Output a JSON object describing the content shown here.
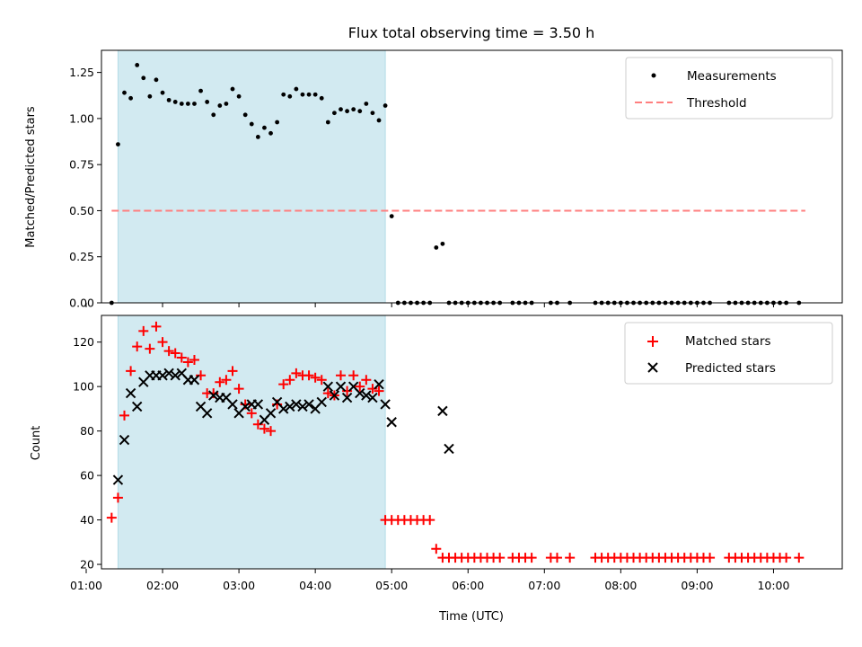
{
  "chart_data": [
    {
      "type": "scatter",
      "title": "Flux total observing time = 3.50 h",
      "ylabel": "Matched/Predicted stars",
      "xlabel": "",
      "xlim": [
        "01:12",
        "10:54"
      ],
      "ylim": [
        0,
        1.37
      ],
      "yticks": [
        "0.00",
        "0.25",
        "0.50",
        "0.75",
        "1.00",
        "1.25"
      ],
      "highlight_span": [
        "01:25",
        "04:55"
      ],
      "highlight_color": "#add8e6",
      "legend": "top-right",
      "series": [
        {
          "name": "Measurements",
          "marker": "dot",
          "color": "#000000",
          "x": [
            "01:20",
            "01:25",
            "01:30",
            "01:35",
            "01:40",
            "01:45",
            "01:50",
            "01:55",
            "02:00",
            "02:05",
            "02:10",
            "02:15",
            "02:20",
            "02:25",
            "02:30",
            "02:35",
            "02:40",
            "02:45",
            "02:50",
            "02:55",
            "03:00",
            "03:05",
            "03:10",
            "03:15",
            "03:20",
            "03:25",
            "03:30",
            "03:35",
            "03:40",
            "03:45",
            "03:50",
            "03:55",
            "04:00",
            "04:05",
            "04:10",
            "04:15",
            "04:20",
            "04:25",
            "04:30",
            "04:35",
            "04:40",
            "04:45",
            "04:50",
            "04:55",
            "05:00",
            "05:05",
            "05:10",
            "05:15",
            "05:20",
            "05:25",
            "05:30",
            "05:35",
            "05:40",
            "05:45",
            "05:50",
            "05:55",
            "06:00",
            "06:05",
            "06:10",
            "06:15",
            "06:20",
            "06:25",
            "06:35",
            "06:40",
            "06:45",
            "06:50",
            "07:05",
            "07:10",
            "07:20",
            "07:40",
            "07:45",
            "07:50",
            "07:55",
            "08:00",
            "08:05",
            "08:10",
            "08:15",
            "08:20",
            "08:25",
            "08:30",
            "08:35",
            "08:40",
            "08:45",
            "08:50",
            "08:55",
            "09:00",
            "09:05",
            "09:10",
            "09:25",
            "09:30",
            "09:35",
            "09:40",
            "09:45",
            "09:50",
            "09:55",
            "10:00",
            "10:05",
            "10:10",
            "10:20"
          ],
          "y": [
            0.0,
            0.86,
            1.14,
            1.11,
            1.29,
            1.22,
            1.12,
            1.21,
            1.14,
            1.1,
            1.09,
            1.08,
            1.08,
            1.08,
            1.15,
            1.09,
            1.02,
            1.07,
            1.08,
            1.16,
            1.12,
            1.02,
            0.97,
            0.9,
            0.95,
            0.92,
            0.98,
            1.13,
            1.12,
            1.16,
            1.13,
            1.13,
            1.13,
            1.11,
            0.98,
            1.03,
            1.05,
            1.04,
            1.05,
            1.04,
            1.08,
            1.03,
            0.99,
            1.07,
            0.47,
            0.0,
            0.0,
            0.0,
            0.0,
            0.0,
            0.0,
            0.3,
            0.32,
            0.0,
            0.0,
            0.0,
            0.0,
            0.0,
            0.0,
            0.0,
            0.0,
            0.0,
            0.0,
            0.0,
            0.0,
            0.0,
            0.0,
            0.0,
            0.0,
            0.0,
            0.0,
            0.0,
            0.0,
            0.0,
            0.0,
            0.0,
            0.0,
            0.0,
            0.0,
            0.0,
            0.0,
            0.0,
            0.0,
            0.0,
            0.0,
            0.0,
            0.0,
            0.0,
            0.0,
            0.0,
            0.0,
            0.0,
            0.0,
            0.0,
            0.0,
            0.0,
            0.0,
            0.0,
            0.0
          ]
        },
        {
          "name": "Threshold",
          "marker": "dashed-line",
          "color": "#ff7f7f",
          "x": [
            "01:20",
            "10:25"
          ],
          "y": [
            0.5,
            0.5
          ]
        }
      ]
    },
    {
      "type": "scatter",
      "title": "",
      "ylabel": "Count",
      "xlabel": "Time (UTC)",
      "xlim": [
        "01:12",
        "10:54"
      ],
      "ylim": [
        18,
        132
      ],
      "yticks": [
        "20",
        "40",
        "60",
        "80",
        "100",
        "120"
      ],
      "xticks": [
        "01:00",
        "02:00",
        "03:00",
        "04:00",
        "05:00",
        "06:00",
        "07:00",
        "08:00",
        "09:00",
        "10:00"
      ],
      "highlight_span": [
        "01:25",
        "04:55"
      ],
      "highlight_color": "#add8e6",
      "legend": "top-right",
      "series": [
        {
          "name": "Matched stars",
          "marker": "plus",
          "color": "#ff0000",
          "x": [
            "01:20",
            "01:25",
            "01:30",
            "01:35",
            "01:40",
            "01:45",
            "01:50",
            "01:55",
            "02:00",
            "02:05",
            "02:10",
            "02:15",
            "02:20",
            "02:25",
            "02:30",
            "02:35",
            "02:40",
            "02:45",
            "02:50",
            "02:55",
            "03:00",
            "03:05",
            "03:10",
            "03:15",
            "03:20",
            "03:25",
            "03:30",
            "03:35",
            "03:40",
            "03:45",
            "03:50",
            "03:55",
            "04:00",
            "04:05",
            "04:10",
            "04:15",
            "04:20",
            "04:25",
            "04:30",
            "04:35",
            "04:40",
            "04:45",
            "04:50",
            "04:55",
            "05:00",
            "05:05",
            "05:10",
            "05:15",
            "05:20",
            "05:25",
            "05:30",
            "05:35",
            "05:40",
            "05:45",
            "05:50",
            "05:55",
            "06:00",
            "06:05",
            "06:10",
            "06:15",
            "06:20",
            "06:25",
            "06:35",
            "06:40",
            "06:45",
            "06:50",
            "07:05",
            "07:10",
            "07:20",
            "07:40",
            "07:45",
            "07:50",
            "07:55",
            "08:00",
            "08:05",
            "08:10",
            "08:15",
            "08:20",
            "08:25",
            "08:30",
            "08:35",
            "08:40",
            "08:45",
            "08:50",
            "08:55",
            "09:00",
            "09:05",
            "09:10",
            "09:25",
            "09:30",
            "09:35",
            "09:40",
            "09:45",
            "09:50",
            "09:55",
            "10:00",
            "10:05",
            "10:10",
            "10:20"
          ],
          "y": [
            41,
            50,
            87,
            107,
            118,
            125,
            117,
            127,
            120,
            116,
            115,
            113,
            111,
            112,
            105,
            97,
            97,
            102,
            103,
            107,
            99,
            92,
            88,
            83,
            81,
            80,
            92,
            101,
            103,
            106,
            105,
            105,
            104,
            103,
            97,
            96,
            105,
            98,
            105,
            100,
            103,
            99,
            98,
            40,
            40,
            40,
            40,
            40,
            40,
            40,
            40,
            27,
            23,
            23,
            23,
            23,
            23,
            23,
            23,
            23,
            23,
            23,
            23,
            23,
            23,
            23,
            23,
            23,
            23,
            23,
            23,
            23,
            23,
            23,
            23,
            23,
            23,
            23,
            23,
            23,
            23,
            23,
            23,
            23,
            23,
            23,
            23,
            23,
            23,
            23,
            23,
            23,
            23,
            23,
            23,
            23,
            23,
            23,
            23
          ]
        },
        {
          "name": "Predicted stars",
          "marker": "x",
          "color": "#000000",
          "x": [
            "01:25",
            "01:30",
            "01:35",
            "01:40",
            "01:45",
            "01:50",
            "01:55",
            "02:00",
            "02:05",
            "02:10",
            "02:15",
            "02:20",
            "02:25",
            "02:30",
            "02:35",
            "02:40",
            "02:45",
            "02:50",
            "02:55",
            "03:00",
            "03:05",
            "03:10",
            "03:15",
            "03:20",
            "03:25",
            "03:30",
            "03:35",
            "03:40",
            "03:45",
            "03:50",
            "03:55",
            "04:00",
            "04:05",
            "04:10",
            "04:15",
            "04:20",
            "04:25",
            "04:30",
            "04:35",
            "04:40",
            "04:45",
            "04:50",
            "04:55",
            "05:00",
            "05:40",
            "05:45"
          ],
          "y": [
            58,
            76,
            97,
            91,
            102,
            105,
            105,
            105,
            106,
            105,
            106,
            103,
            103,
            91,
            88,
            96,
            95,
            95,
            92,
            88,
            91,
            92,
            92,
            85,
            88,
            93,
            90,
            91,
            92,
            91,
            92,
            90,
            93,
            100,
            96,
            100,
            95,
            100,
            97,
            96,
            95,
            101,
            92,
            84,
            89,
            72
          ]
        }
      ]
    }
  ]
}
